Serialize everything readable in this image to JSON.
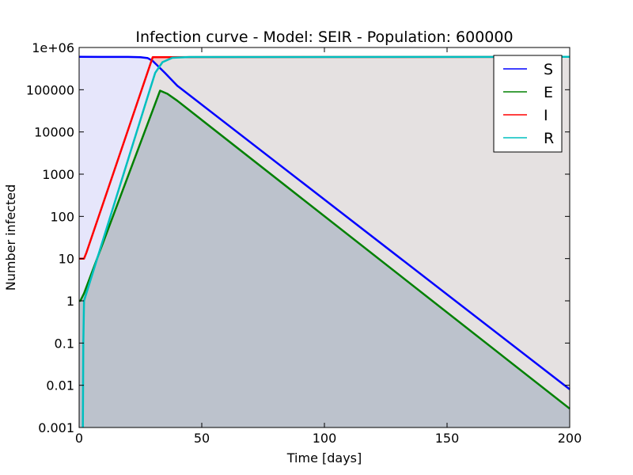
{
  "chart_data": {
    "type": "line",
    "title": "Infection curve - Model: SEIR - Population: 600000",
    "xlabel": "Time [days]",
    "ylabel": "Number infected",
    "xlim": [
      0,
      200
    ],
    "ylim": [
      0.001,
      1000000
    ],
    "yscale": "log",
    "grid": false,
    "legend_position": "top-right",
    "x_ticks": [
      0,
      50,
      100,
      150,
      200
    ],
    "x_tick_labels": [
      "0",
      "50",
      "100",
      "150",
      "200"
    ],
    "y_ticks": [
      0.001,
      0.01,
      0.1,
      1,
      10,
      100,
      1000,
      10000,
      100000,
      1000000
    ],
    "y_tick_labels": [
      "0.001",
      "0.01",
      "0.1",
      "1",
      "10",
      "100",
      "1000",
      "10000",
      "100000",
      "1e+06"
    ],
    "series": [
      {
        "name": "S",
        "color": "#0000ff",
        "fill": "#e6e6fb",
        "points": [
          [
            0,
            600000
          ],
          [
            20,
            599000
          ],
          [
            25,
            590000
          ],
          [
            28,
            560000
          ],
          [
            30,
            480000
          ],
          [
            32,
            370000
          ],
          [
            35,
            250000
          ],
          [
            40,
            125000
          ],
          [
            200,
            0.008
          ]
        ]
      },
      {
        "name": "E",
        "color": "#008000",
        "fill": "#bcc2cc",
        "points": [
          [
            0,
            1
          ],
          [
            0.5,
            1
          ],
          [
            2,
            1.5
          ],
          [
            33,
            95000
          ],
          [
            36,
            80000
          ],
          [
            40,
            55000
          ],
          [
            200,
            0.0028
          ]
        ]
      },
      {
        "name": "I",
        "color": "#ff0000",
        "fill": "#f4cccc",
        "points": [
          [
            0,
            10
          ],
          [
            2,
            10
          ],
          [
            3,
            14
          ],
          [
            30,
            590000
          ],
          [
            200,
            600000
          ]
        ]
      },
      {
        "name": "R",
        "color": "#00bfbf",
        "fill": "#e5e1e1",
        "points": [
          [
            1.5,
            0.001
          ],
          [
            1.6,
            0.01
          ],
          [
            1.7,
            0.1
          ],
          [
            2,
            1
          ],
          [
            28,
            70000
          ],
          [
            31,
            250000
          ],
          [
            34,
            450000
          ],
          [
            38,
            570000
          ],
          [
            45,
            595000
          ],
          [
            200,
            600000
          ]
        ]
      }
    ]
  }
}
